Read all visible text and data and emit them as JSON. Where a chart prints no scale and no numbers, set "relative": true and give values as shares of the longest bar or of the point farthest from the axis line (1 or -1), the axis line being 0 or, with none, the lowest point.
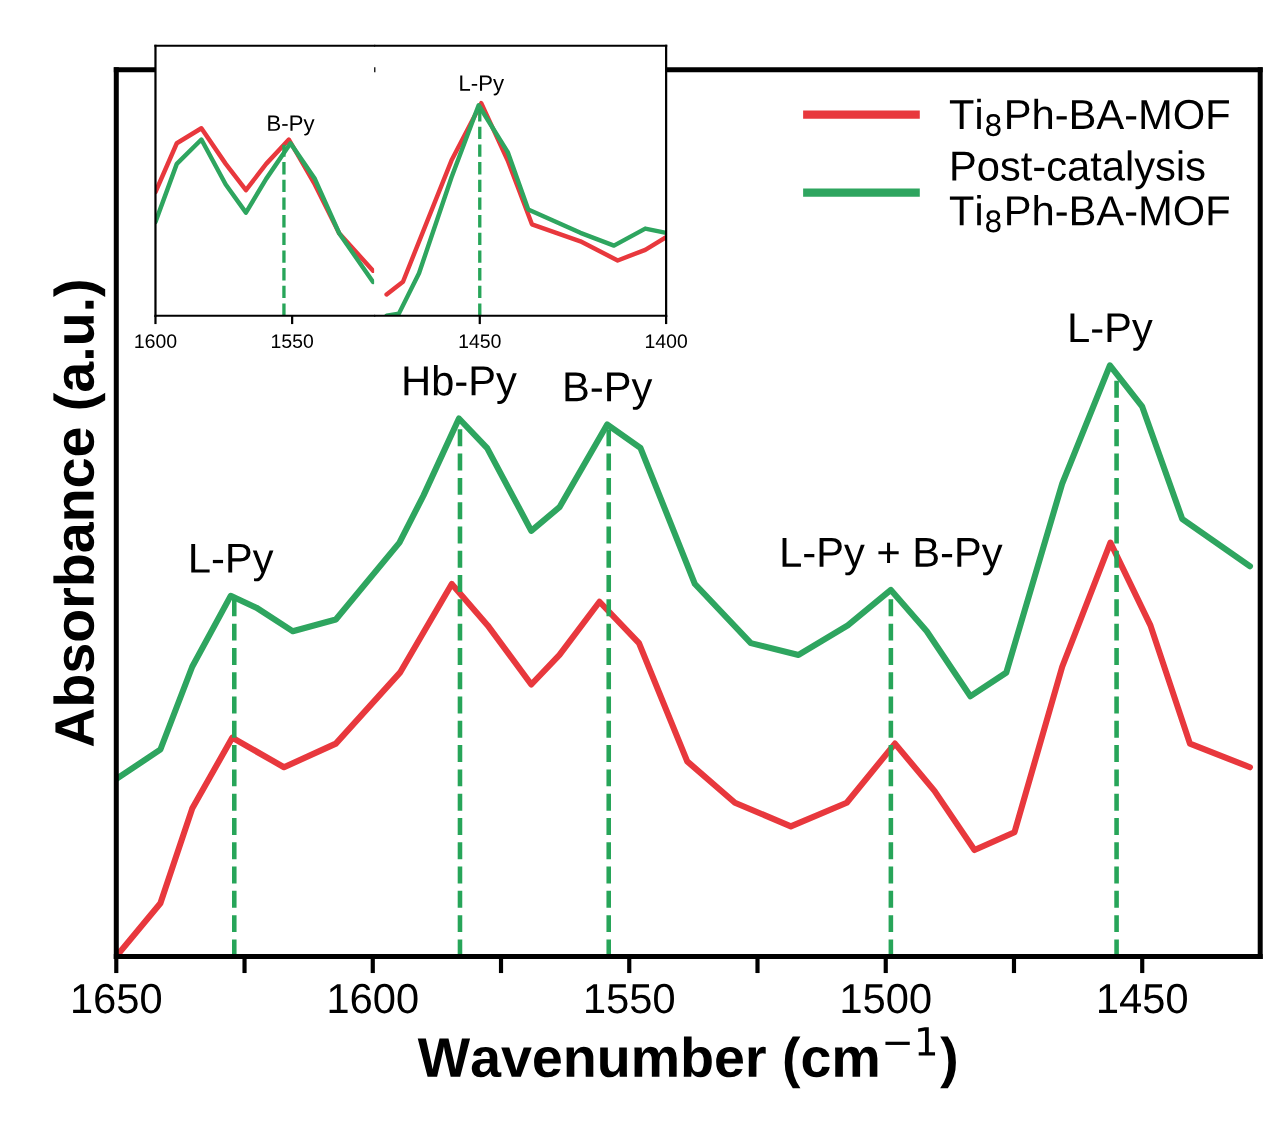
{
  "chart_data": [
    {
      "type": "line",
      "relative": true,
      "xlabel": "Wavenumber (cm$^{−1}$)",
      "ylabel": "Absorbance (a.u.)",
      "xlim": [
        1650,
        1427
      ],
      "xticks": [
        1650,
        {
          "value": 1625,
          "label": null
        },
        1600,
        {
          "value": 1575,
          "label": null
        },
        1550,
        {
          "value": 1525,
          "label": null
        },
        1500,
        {
          "value": 1475,
          "label": null
        },
        1450
      ],
      "legend": "top right",
      "grid": false,
      "line_style": "solid",
      "marker": "none",
      "series": [
        {
          "name": "Ti$_{8}$Ph-BA-MOF",
          "color": "#e8383d",
          "x": [
            1650,
            1641.4,
            1635.2,
            1627.4,
            1617.3,
            1607.2,
            1594.7,
            1584.6,
            1577.6,
            1569.1,
            1563.6,
            1555.8,
            1548.1,
            1538.7,
            1529.4,
            1518.5,
            1507.6,
            1498.2,
            1490.5,
            1482.7,
            1474.9,
            1465.6,
            1456.2,
            1448.4,
            1440.7,
            1429
          ],
          "values": [
            0,
            0.09,
            0.25,
            0.37,
            0.32,
            0.36,
            0.48,
            0.63,
            0.56,
            0.46,
            0.51,
            0.6,
            0.53,
            0.33,
            0.26,
            0.22,
            0.26,
            0.36,
            0.28,
            0.18,
            0.21,
            0.49,
            0.7,
            0.56,
            0.36,
            0.32
          ]
        },
        {
          "name": "Post-catalysis\nTi$_{8}$Ph-BA-MOF",
          "color": "#2ea55f",
          "x": [
            1650,
            1641.4,
            1635.2,
            1627.7,
            1622.7,
            1615.6,
            1607.2,
            1594.8,
            1590.1,
            1583.2,
            1577.7,
            1569.1,
            1563.6,
            1554.3,
            1547.8,
            1537.2,
            1526.3,
            1517,
            1507.4,
            1499,
            1492,
            1483.5,
            1476.5,
            1465.6,
            1456.3,
            1450,
            1442.2,
            1429
          ],
          "values": [
            0.3,
            0.35,
            0.49,
            0.61,
            0.59,
            0.55,
            0.57,
            0.7,
            0.78,
            0.91,
            0.86,
            0.72,
            0.76,
            0.9,
            0.86,
            0.63,
            0.53,
            0.51,
            0.56,
            0.62,
            0.55,
            0.44,
            0.48,
            0.8,
            1.0,
            0.93,
            0.74,
            0.66
          ]
        }
      ],
      "ref_lines": [
        {
          "axis": "x",
          "value": 1627,
          "color": "#27a559",
          "line_style": "dashed"
        },
        {
          "axis": "x",
          "value": 1583,
          "color": "#27a559",
          "line_style": "dashed"
        },
        {
          "axis": "x",
          "value": 1554,
          "color": "#27a559",
          "line_style": "dashed"
        },
        {
          "axis": "x",
          "value": 1499,
          "color": "#27a559",
          "line_style": "dashed"
        },
        {
          "axis": "x",
          "value": 1455,
          "color": "#27a559",
          "line_style": "dashed"
        }
      ],
      "annotations": [
        {
          "text": "L-Py",
          "x": 1627.7,
          "y": 0.61
        },
        {
          "text": "Hb-Py",
          "x": 1583.2,
          "y": 0.91
        },
        {
          "text": "B-Py",
          "x": 1554.3,
          "y": 0.9
        },
        {
          "text": "L-Py + B-Py",
          "x": 1499,
          "y": 0.62
        },
        {
          "text": "L-Py",
          "x": 1456.3,
          "y": 1.0
        }
      ]
    },
    {
      "type": "line",
      "relative": true,
      "tick_labels": "x",
      "xlim": [
        1600,
        1520
      ],
      "xticks": [
        1600,
        1550
      ],
      "grid": false,
      "line_style": "solid",
      "marker": "none",
      "series": [
        {
          "color": "#e8383d",
          "x": [
            1600,
            1592.2,
            1583.2,
            1574.3,
            1566.9,
            1559.5,
            1551.2,
            1541.7,
            1532.8,
            1520.4
          ],
          "values": [
            0.66,
            0.92,
            1.0,
            0.81,
            0.67,
            0.81,
            0.94,
            0.7,
            0.44,
            0.24
          ]
        },
        {
          "color": "#2ea55f",
          "x": [
            1600,
            1592.2,
            1583.2,
            1574.3,
            1566.9,
            1559.5,
            1550.6,
            1541.7,
            1532.8,
            1520.4
          ],
          "values": [
            0.5,
            0.81,
            0.94,
            0.7,
            0.55,
            0.73,
            0.92,
            0.73,
            0.44,
            0.18
          ]
        }
      ],
      "ref_lines": [
        {
          "axis": "x",
          "value": 1553,
          "color": "#27a559",
          "line_style": "dashed"
        }
      ],
      "annotations": [
        {
          "text": "B-Py",
          "x": 1550.6,
          "y": 0.92
        }
      ]
    },
    {
      "type": "line",
      "relative": true,
      "tick_labels": "x",
      "xlim": [
        1478,
        1400
      ],
      "xticks": [
        1450,
        1400
      ],
      "grid": false,
      "line_style": "solid",
      "marker": "none",
      "series": [
        {
          "color": "#e8383d",
          "x": [
            1475,
            1470.6,
            1457.6,
            1449.6,
            1442.5,
            1436,
            1423,
            1413,
            1405.6,
            1400
          ],
          "values": [
            0.1,
            0.16,
            0.73,
            1.0,
            0.73,
            0.43,
            0.35,
            0.26,
            0.31,
            0.37
          ]
        },
        {
          "color": "#2ea55f",
          "x": [
            1475,
            1471.7,
            1466.3,
            1457.6,
            1450.3,
            1442.5,
            1437,
            1423,
            1414,
            1405.6,
            1400
          ],
          "values": [
            0,
            0.01,
            0.2,
            0.65,
            0.99,
            0.77,
            0.5,
            0.39,
            0.33,
            0.41,
            0.39
          ]
        }
      ],
      "ref_lines": [
        {
          "axis": "x",
          "value": 1450,
          "color": "#27a559",
          "line_style": "dashed"
        }
      ],
      "annotations": [
        {
          "text": "L-Py",
          "x": 1449.6,
          "y": 1.0
        }
      ]
    }
  ]
}
